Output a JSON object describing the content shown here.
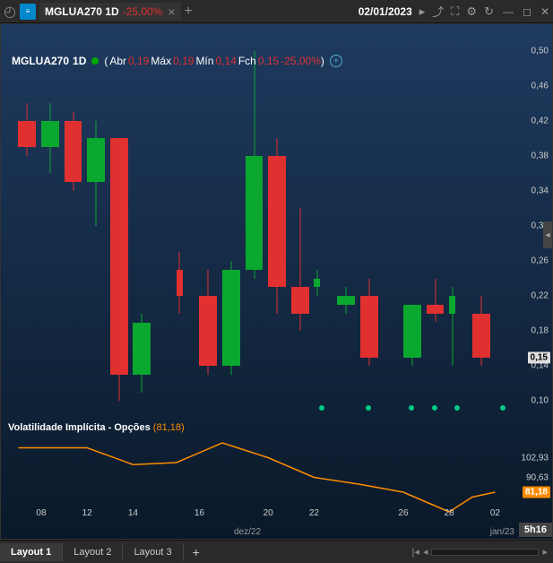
{
  "colors": {
    "up": "#0aa82f",
    "down": "#e03030",
    "line": "#ff8c00",
    "event_dot": "#00cc88",
    "price_marker_bg": "#dddddd",
    "iv_marker_bg": "#ff8c00"
  },
  "titlebar": {
    "symbol": "MGLUA270 1D",
    "change": "-25,00%",
    "date": "02/01/2023"
  },
  "header": {
    "symbol": "MGLUA270",
    "timeframe": "1D",
    "open_label": "Abr",
    "open": "0,19",
    "high_label": "Máx",
    "high": "0,19",
    "low_label": "Mín",
    "low": "0,14",
    "close_label": "Fch",
    "close": "0,15",
    "change": "-25,00%"
  },
  "price_axis": {
    "min": 0.08,
    "max": 0.52,
    "ticks": [
      0.5,
      0.46,
      0.42,
      0.38,
      0.34,
      0.3,
      0.26,
      0.22,
      0.18,
      0.14,
      0.1
    ],
    "marker": 0.15,
    "marker_label": "0,15"
  },
  "candles": [
    {
      "x": 0.02,
      "o": 0.42,
      "h": 0.44,
      "l": 0.38,
      "c": 0.39,
      "w": 0.035
    },
    {
      "x": 0.065,
      "o": 0.39,
      "h": 0.44,
      "l": 0.36,
      "c": 0.42,
      "w": 0.035
    },
    {
      "x": 0.11,
      "o": 0.42,
      "h": 0.43,
      "l": 0.34,
      "c": 0.35,
      "w": 0.035
    },
    {
      "x": 0.155,
      "o": 0.35,
      "h": 0.42,
      "l": 0.3,
      "c": 0.4,
      "w": 0.035
    },
    {
      "x": 0.2,
      "o": 0.4,
      "h": 0.4,
      "l": 0.1,
      "c": 0.13,
      "w": 0.035
    },
    {
      "x": 0.245,
      "o": 0.13,
      "h": 0.2,
      "l": 0.11,
      "c": 0.19,
      "w": 0.035
    },
    {
      "x": 0.33,
      "o": 0.25,
      "h": 0.27,
      "l": 0.2,
      "c": 0.22,
      "w": 0.012
    },
    {
      "x": 0.375,
      "o": 0.22,
      "h": 0.25,
      "l": 0.13,
      "c": 0.14,
      "w": 0.035
    },
    {
      "x": 0.42,
      "o": 0.14,
      "h": 0.26,
      "l": 0.13,
      "c": 0.25,
      "w": 0.035
    },
    {
      "x": 0.465,
      "o": 0.25,
      "h": 0.5,
      "l": 0.24,
      "c": 0.38,
      "w": 0.035
    },
    {
      "x": 0.51,
      "o": 0.38,
      "h": 0.4,
      "l": 0.2,
      "c": 0.23,
      "w": 0.035
    },
    {
      "x": 0.555,
      "o": 0.23,
      "h": 0.32,
      "l": 0.18,
      "c": 0.2,
      "w": 0.035
    },
    {
      "x": 0.6,
      "o": 0.23,
      "h": 0.25,
      "l": 0.22,
      "c": 0.24,
      "w": 0.012
    },
    {
      "x": 0.645,
      "o": 0.21,
      "h": 0.23,
      "l": 0.2,
      "c": 0.22,
      "w": 0.035
    },
    {
      "x": 0.69,
      "o": 0.22,
      "h": 0.24,
      "l": 0.14,
      "c": 0.15,
      "w": 0.035
    },
    {
      "x": 0.775,
      "o": 0.15,
      "h": 0.21,
      "l": 0.14,
      "c": 0.21,
      "w": 0.035
    },
    {
      "x": 0.82,
      "o": 0.21,
      "h": 0.24,
      "l": 0.19,
      "c": 0.2,
      "w": 0.035
    },
    {
      "x": 0.865,
      "o": 0.2,
      "h": 0.23,
      "l": 0.14,
      "c": 0.22,
      "w": 0.012
    },
    {
      "x": 0.91,
      "o": 0.2,
      "h": 0.22,
      "l": 0.14,
      "c": 0.15,
      "w": 0.035
    }
  ],
  "event_dots_x": [
    0.6,
    0.69,
    0.775,
    0.82,
    0.865,
    0.955
  ],
  "time_axis": {
    "ticks": [
      {
        "x": 0.065,
        "label": "08"
      },
      {
        "x": 0.155,
        "label": "12"
      },
      {
        "x": 0.245,
        "label": "14"
      },
      {
        "x": 0.375,
        "label": "16"
      },
      {
        "x": 0.51,
        "label": "20"
      },
      {
        "x": 0.6,
        "label": "22"
      },
      {
        "x": 0.775,
        "label": "26"
      },
      {
        "x": 0.865,
        "label": "28"
      },
      {
        "x": 0.955,
        "label": "02"
      }
    ],
    "month_left": "dez/22",
    "month_right": "jan/23",
    "time_box": "5h16"
  },
  "indicator": {
    "title": "Volatilidade Implícita - Opções",
    "value_label": "(81,18)",
    "axis_ticks": [
      {
        "y": 0.35,
        "label": "102,93"
      },
      {
        "y": 0.55,
        "label": "90,63"
      }
    ],
    "marker": {
      "y": 0.7,
      "label": "81,18"
    },
    "points": [
      {
        "x": 0.02,
        "y": 0.25
      },
      {
        "x": 0.155,
        "y": 0.25
      },
      {
        "x": 0.245,
        "y": 0.42
      },
      {
        "x": 0.33,
        "y": 0.4
      },
      {
        "x": 0.42,
        "y": 0.2
      },
      {
        "x": 0.51,
        "y": 0.35
      },
      {
        "x": 0.6,
        "y": 0.55
      },
      {
        "x": 0.69,
        "y": 0.62
      },
      {
        "x": 0.775,
        "y": 0.7
      },
      {
        "x": 0.82,
        "y": 0.8
      },
      {
        "x": 0.865,
        "y": 0.9
      },
      {
        "x": 0.91,
        "y": 0.75
      },
      {
        "x": 0.955,
        "y": 0.7
      }
    ]
  },
  "layouts": [
    "Layout 1",
    "Layout 2",
    "Layout 3"
  ],
  "active_layout": 0
}
